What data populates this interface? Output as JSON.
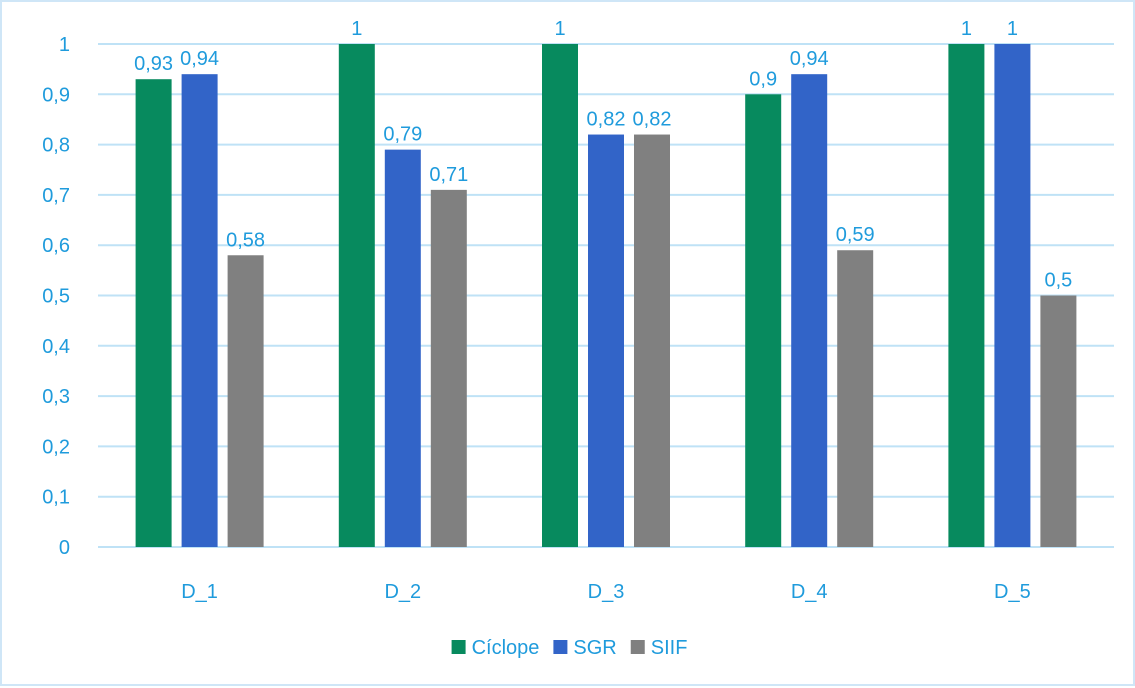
{
  "chart_data": {
    "type": "bar",
    "categories": [
      "D_1",
      "D_2",
      "D_3",
      "D_4",
      "D_5"
    ],
    "series": [
      {
        "name": "Cíclope",
        "color": "#078a5e",
        "values": [
          0.93,
          1,
          1,
          0.9,
          1
        ],
        "labels": [
          "0,93",
          "1",
          "1",
          "0,9",
          "1"
        ]
      },
      {
        "name": "SGR",
        "color": "#3264c8",
        "values": [
          0.94,
          0.79,
          0.82,
          0.94,
          1
        ],
        "labels": [
          "0,94",
          "0,79",
          "0,82",
          "0,94",
          "1"
        ]
      },
      {
        "name": "SIIF",
        "color": "#808080",
        "values": [
          0.58,
          0.71,
          0.82,
          0.59,
          0.5
        ],
        "labels": [
          "0,58",
          "0,71",
          "0,82",
          "0,59",
          "0,5"
        ]
      }
    ],
    "yticks": [
      0,
      0.1,
      0.2,
      0.3,
      0.4,
      0.5,
      0.6,
      0.7,
      0.8,
      0.9,
      1
    ],
    "ytick_labels": [
      "0",
      "0,1",
      "0,2",
      "0,3",
      "0,4",
      "0,5",
      "0,6",
      "0,7",
      "0,8",
      "0,9",
      "1"
    ],
    "ylim": [
      0,
      1
    ],
    "grid": true,
    "legend_position": "bottom",
    "label_color": "#1f9bdc",
    "grid_color": "#bfe2f6"
  }
}
